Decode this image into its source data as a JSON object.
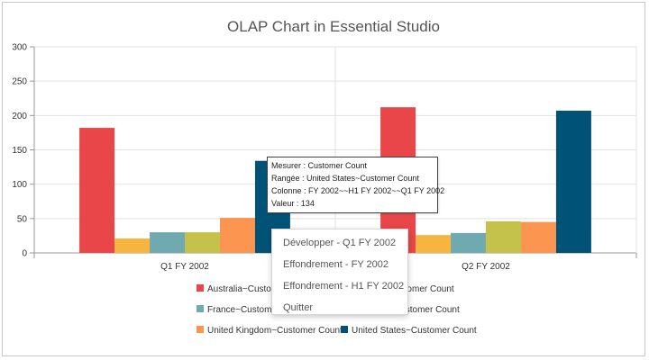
{
  "chart_data": {
    "type": "bar",
    "title": "OLAP Chart in Essential Studio",
    "categories": [
      "Q1 FY 2002",
      "Q2 FY 2002"
    ],
    "ylim": [
      0,
      300
    ],
    "yticks": [
      0,
      50,
      100,
      150,
      200,
      250,
      300
    ],
    "grid": true,
    "legend_position": "bottom",
    "series": [
      {
        "name": "Australia~Customer Count",
        "color": "#e94649",
        "values": [
          182,
          212
        ]
      },
      {
        "name": "Canada~Customer Count",
        "color": "#f6b53f",
        "values": [
          21,
          26
        ]
      },
      {
        "name": "France~Customer Count",
        "color": "#6fAAb0",
        "values": [
          30,
          29
        ]
      },
      {
        "name": "Germany~Customer Count",
        "color": "#c4c24a",
        "values": [
          30,
          46
        ]
      },
      {
        "name": "United Kingdom~Customer Count",
        "color": "#fb954f",
        "values": [
          51,
          45
        ]
      },
      {
        "name": "United States~Customer Count",
        "color": "#005277",
        "values": [
          134,
          207
        ]
      }
    ]
  },
  "tooltip": {
    "line1": "Mesurer : Customer Count",
    "line2": "Rangée : United States~Customer Count",
    "line3": "Colonne : FY 2002~~H1 FY 2002~~Q1 FY 2002",
    "line4": "Valeur : 134"
  },
  "context_menu": {
    "items": [
      "Développer - Q1 FY 2002",
      "Effondrement - FY 2002",
      "Effondrement - H1 FY 2002",
      "Quitter"
    ]
  }
}
